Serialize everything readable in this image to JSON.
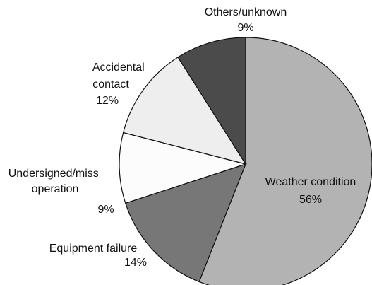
{
  "chart_data": {
    "type": "pie",
    "categories": [
      "Weather condition",
      "Equipment failure",
      "Undersigned/miss operation",
      "Accidental contact",
      "Others/unknown"
    ],
    "values": [
      56,
      14,
      9,
      12,
      9
    ],
    "value_labels": [
      "56%",
      "14%",
      "9%",
      "12%",
      "9%"
    ],
    "colors": [
      "#b3b3b3",
      "#777777",
      "#fcfcfc",
      "#eeeeee",
      "#4b4b4b"
    ]
  }
}
